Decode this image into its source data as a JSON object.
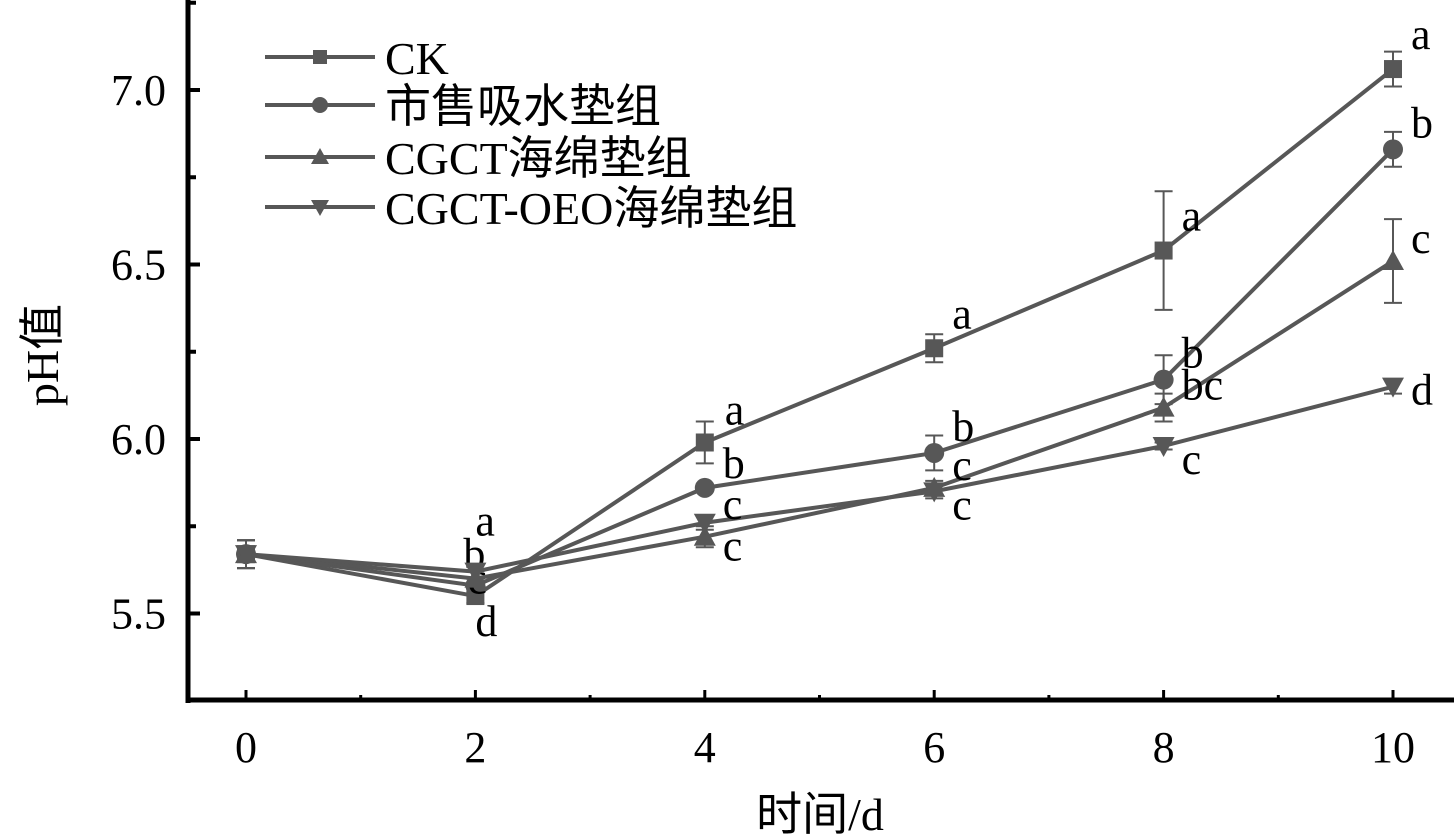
{
  "chart_data": {
    "type": "line",
    "title": "",
    "xlabel": "时间/d",
    "ylabel": "pH值",
    "x": [
      0,
      2,
      4,
      6,
      8,
      10
    ],
    "xlim": [
      -0.5,
      10.5
    ],
    "ylim": [
      5.25,
      7.26
    ],
    "xticks": [
      "0",
      "2",
      "4",
      "6",
      "8",
      "10"
    ],
    "yticks": [
      "5.5",
      "6.0",
      "6.5",
      "7.0"
    ],
    "grid": false,
    "legend_position": "top-left",
    "series": [
      {
        "name": "CK",
        "marker": "square",
        "values": [
          5.67,
          5.55,
          5.99,
          6.26,
          6.54,
          7.06
        ],
        "errors": [
          0.04,
          0.02,
          0.06,
          0.04,
          0.17,
          0.05
        ],
        "letters": [
          "",
          "d",
          "a",
          "a",
          "a",
          "a"
        ]
      },
      {
        "name": "市售吸水垫组",
        "marker": "circle",
        "values": [
          5.67,
          5.58,
          5.86,
          5.96,
          6.17,
          6.83
        ],
        "errors": [
          0.04,
          0.02,
          0.01,
          0.05,
          0.07,
          0.05
        ],
        "letters": [
          "",
          "c",
          "b",
          "b",
          "b",
          "b"
        ]
      },
      {
        "name": "CGCT海绵垫组",
        "marker": "triangle-up",
        "values": [
          5.67,
          5.6,
          5.72,
          5.86,
          6.09,
          6.51
        ],
        "errors": [
          0.04,
          0.02,
          0.03,
          0.02,
          0.04,
          0.12
        ],
        "letters": [
          "",
          "b",
          "c",
          "c",
          "bc",
          "c"
        ]
      },
      {
        "name": "CGCT-OEO海绵垫组",
        "marker": "triangle-down",
        "values": [
          5.67,
          5.62,
          5.76,
          5.85,
          5.98,
          6.15
        ],
        "errors": [
          0.04,
          0.02,
          0.02,
          0.02,
          0.01,
          0.02
        ],
        "letters": [
          "",
          "a",
          "c",
          "c",
          "c",
          "d"
        ]
      }
    ],
    "colors": {
      "series": "#575757",
      "axis": "#000000"
    }
  }
}
